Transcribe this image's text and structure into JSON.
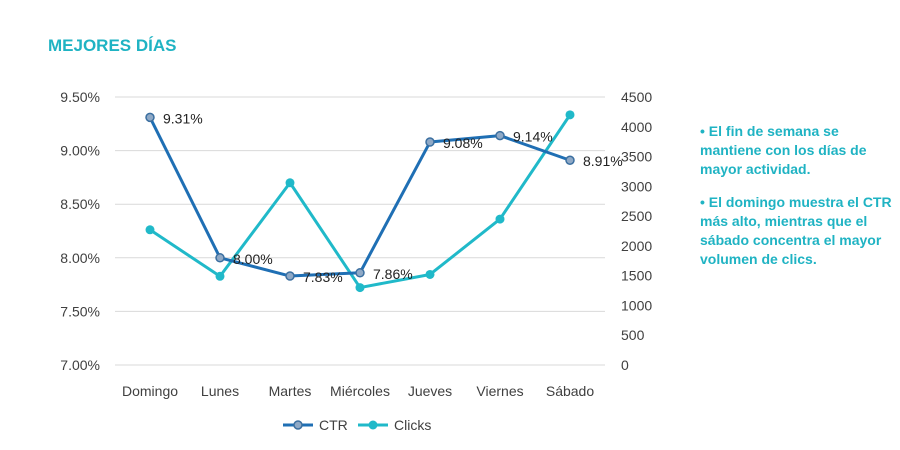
{
  "title": "MEJORES DÍAS",
  "notes": [
    "• El fin de semana se mantiene con los días de mayor actividad.",
    "• El domingo muestra el CTR más alto, mientras que el sábado concentra el mayor volumen de clics."
  ],
  "colors": {
    "title": "#1fb3c3",
    "ctr": "#1f6fb4",
    "clicks": "#20b9c9",
    "axis_text": "#404040",
    "grid": "#d9d9d9"
  },
  "chart_data": {
    "type": "line",
    "categories": [
      "Domingo",
      "Lunes",
      "Martes",
      "Miércoles",
      "Jueves",
      "Viernes",
      "Sábado"
    ],
    "series": [
      {
        "name": "CTR",
        "axis": "left",
        "values": [
          9.31,
          8.0,
          7.83,
          7.86,
          9.08,
          9.14,
          8.91
        ],
        "labels": [
          "9.31%",
          "8.00%",
          "7.83%",
          "7.86%",
          "9.08%",
          "9.14%",
          "8.91%"
        ]
      },
      {
        "name": "Clicks",
        "axis": "right",
        "values": [
          2270,
          1490,
          3060,
          1300,
          1520,
          2450,
          4200
        ]
      }
    ],
    "y_left": {
      "ylim": [
        7.0,
        9.5
      ],
      "ticks": [
        "7.00%",
        "7.50%",
        "8.00%",
        "8.50%",
        "9.00%",
        "9.50%"
      ]
    },
    "y_right": {
      "ylim": [
        0,
        4500
      ],
      "ticks": [
        "0",
        "500",
        "1000",
        "1500",
        "2000",
        "2500",
        "3000",
        "3500",
        "4000",
        "4500"
      ]
    },
    "grid": true,
    "legend": "bottom-center"
  }
}
